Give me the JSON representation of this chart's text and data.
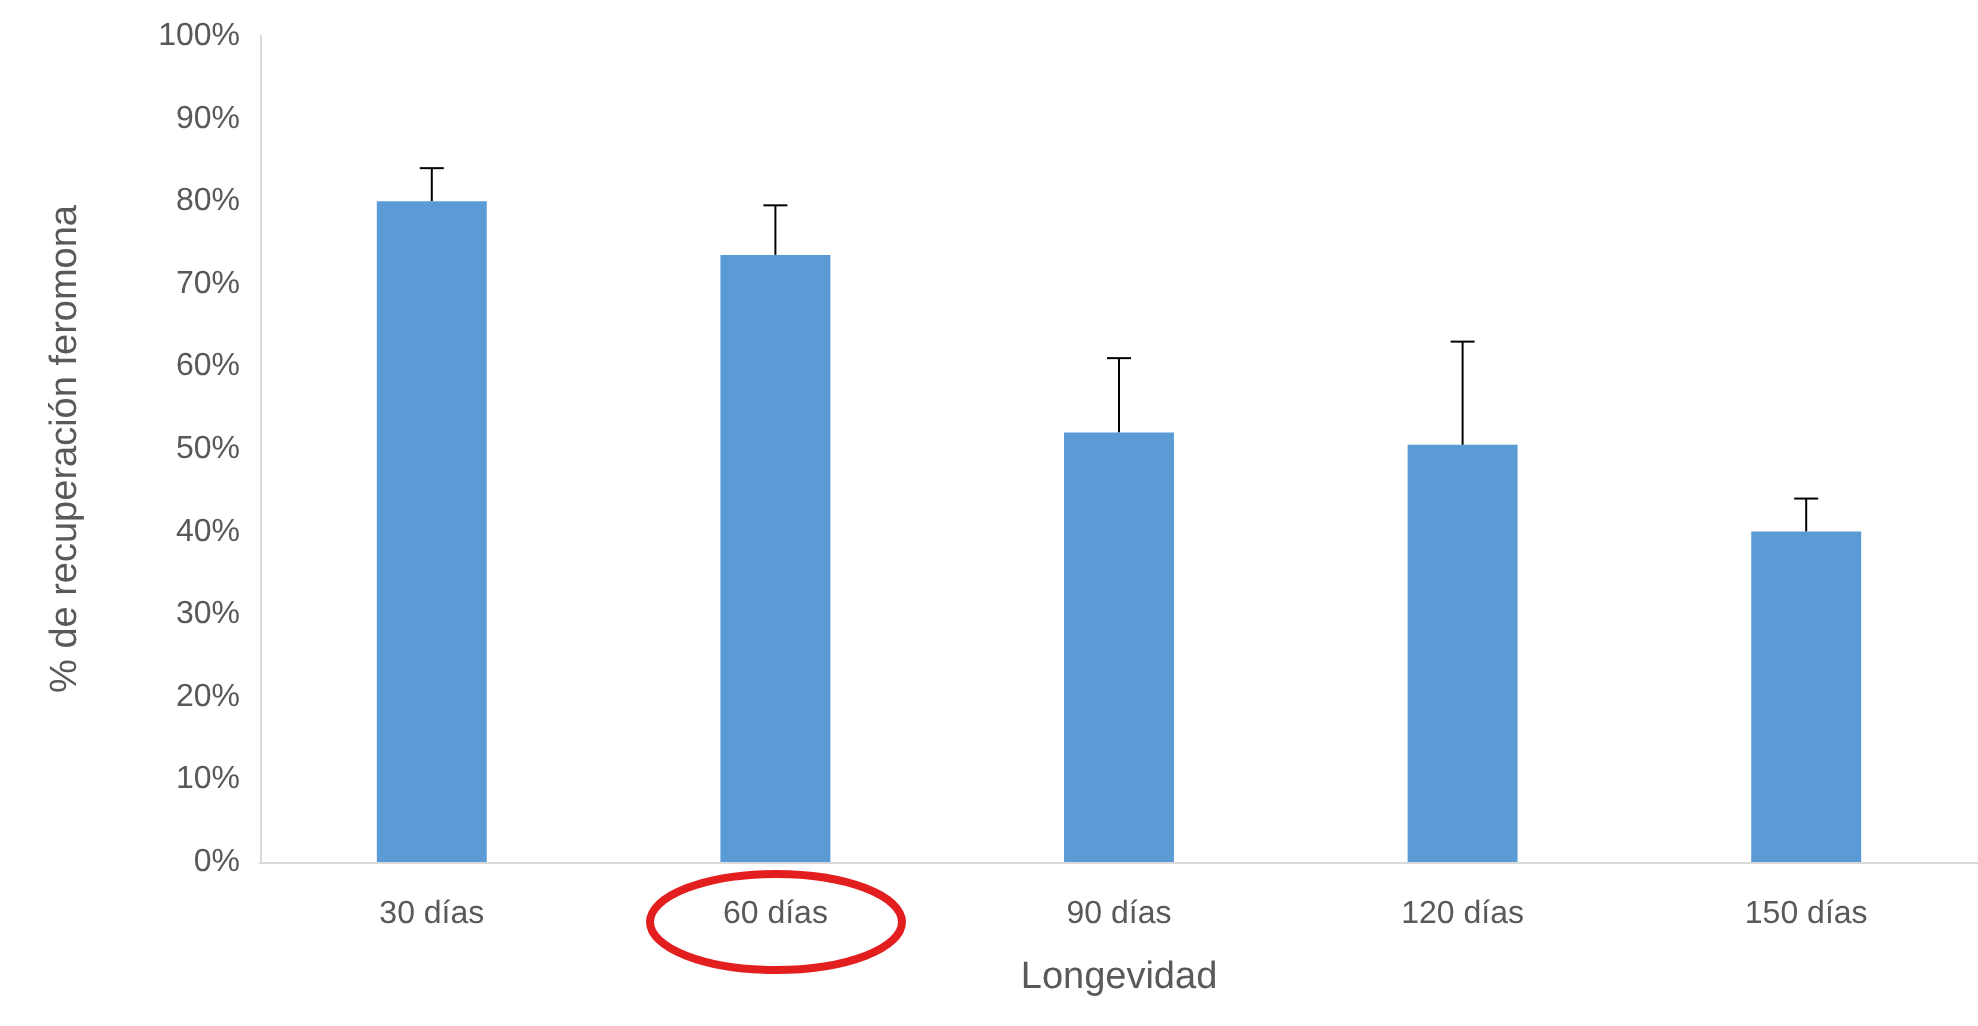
{
  "chart_data": {
    "type": "bar",
    "xlabel": "Longevidad",
    "ylabel": "% de recuperación feromona",
    "categories": [
      "30 días",
      "60 días",
      "90 días",
      "120 días",
      "150 días"
    ],
    "values": [
      80,
      73.5,
      52,
      50.5,
      40
    ],
    "errors": [
      [
        80,
        84
      ],
      [
        73.5,
        79.5
      ],
      [
        52,
        61
      ],
      [
        50.5,
        63
      ],
      [
        40,
        44
      ]
    ],
    "color": "#5b9bd5",
    "ylim": [
      0,
      100
    ],
    "yticks": [
      {
        "value": 0,
        "label": "0%"
      },
      {
        "value": 10,
        "label": "10%"
      },
      {
        "value": 20,
        "label": "20%"
      },
      {
        "value": 30,
        "label": "30%"
      },
      {
        "value": 40,
        "label": "40%"
      },
      {
        "value": 50,
        "label": "50%"
      },
      {
        "value": 60,
        "label": "60%"
      },
      {
        "value": 70,
        "label": "70%"
      },
      {
        "value": 80,
        "label": "80%"
      },
      {
        "value": 90,
        "label": "90%"
      },
      {
        "value": 100,
        "label": "100%"
      }
    ],
    "grid": false
  }
}
